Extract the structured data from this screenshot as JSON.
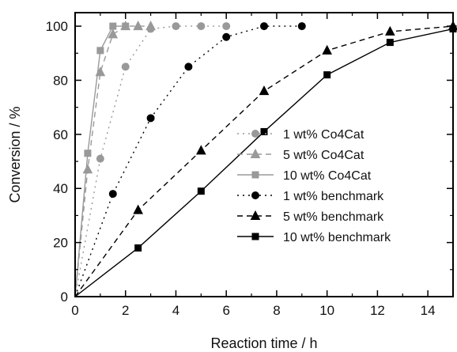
{
  "chart_data": {
    "type": "line",
    "title": "",
    "xlabel": "Reaction time / h",
    "ylabel": "Conversion / %",
    "xlim": [
      0,
      15
    ],
    "ylim": [
      0,
      105
    ],
    "xticks": [
      0,
      2,
      4,
      6,
      8,
      10,
      12,
      14
    ],
    "yticks": [
      0,
      20,
      40,
      60,
      80,
      100
    ],
    "x_tick_labels": [
      "0",
      "2",
      "4",
      "6",
      "8",
      "10",
      "12",
      "14"
    ],
    "y_tick_labels": [
      "0",
      "20",
      "40",
      "60",
      "80",
      "100"
    ],
    "grid": false,
    "legend_position": "bottom-right",
    "series": [
      {
        "name": "1 wt% Co4Cat",
        "color": "#999999",
        "line_style": "dotted",
        "marker": "circle",
        "x": [
          0,
          1,
          2,
          3,
          4,
          5,
          6
        ],
        "y": [
          0,
          51,
          85,
          99,
          100,
          100,
          100
        ]
      },
      {
        "name": "5 wt% Co4Cat",
        "color": "#999999",
        "line_style": "dashed",
        "marker": "triangle",
        "x": [
          0,
          0.5,
          1,
          1.5,
          2,
          2.5,
          3
        ],
        "y": [
          0,
          47,
          83,
          97,
          100,
          100,
          100
        ]
      },
      {
        "name": "10 wt% Co4Cat",
        "color": "#999999",
        "line_style": "solid",
        "marker": "square",
        "x": [
          0,
          0.5,
          1,
          1.5,
          2
        ],
        "y": [
          0,
          53,
          91,
          100,
          100
        ]
      },
      {
        "name": "1 wt% benchmark",
        "color": "#000000",
        "line_style": "dotted",
        "marker": "circle",
        "x": [
          0,
          1.5,
          3,
          4.5,
          6,
          7.5,
          9
        ],
        "y": [
          0,
          38,
          66,
          85,
          96,
          100,
          100
        ]
      },
      {
        "name": "5 wt% benchmark",
        "color": "#000000",
        "line_style": "dashed",
        "marker": "triangle",
        "x": [
          0,
          2.5,
          5,
          7.5,
          10,
          12.5,
          15
        ],
        "y": [
          0,
          32,
          54,
          76,
          91,
          98,
          100
        ]
      },
      {
        "name": "10 wt% benchmark",
        "color": "#000000",
        "line_style": "solid",
        "marker": "square",
        "x": [
          0,
          2.5,
          5,
          7.5,
          10,
          12.5,
          15
        ],
        "y": [
          0,
          18,
          39,
          61,
          82,
          94,
          99
        ]
      }
    ]
  }
}
